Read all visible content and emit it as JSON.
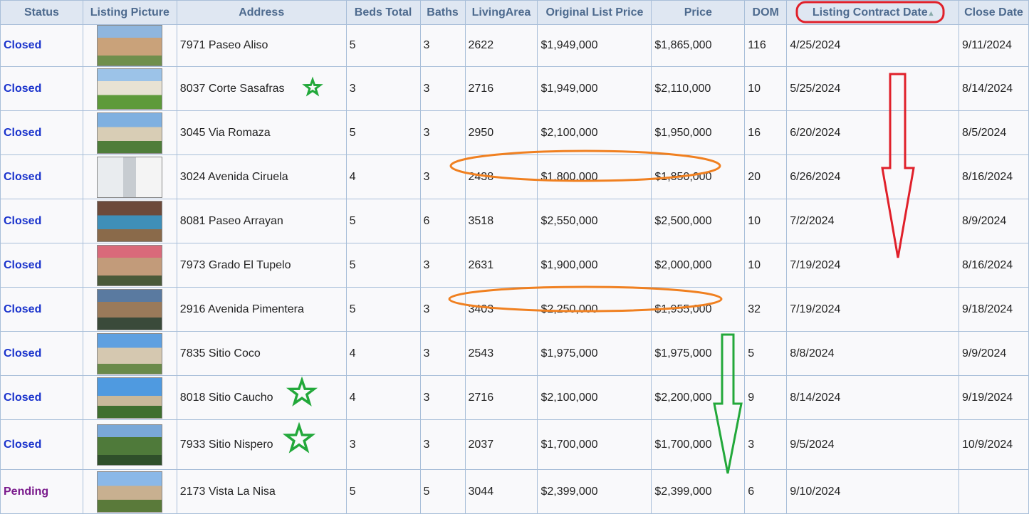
{
  "columns": [
    "Status",
    "Listing Picture",
    "Address",
    "Beds Total",
    "Baths",
    "LivingArea",
    "Original List Price",
    "Price",
    "DOM",
    "Listing Contract Date",
    "Close Date"
  ],
  "sort_icon": "sort-icon",
  "rows": [
    {
      "status": "Closed",
      "address": "7971 Paseo Aliso",
      "beds": "5",
      "baths": "3",
      "area": "2622",
      "orig": "$1,949,000",
      "price": "$1,865,000",
      "dom": "116",
      "contract": "4/25/2024",
      "close": "9/11/2024"
    },
    {
      "status": "Closed",
      "address": "8037 Corte Sasafras",
      "beds": "3",
      "baths": "3",
      "area": "2716",
      "orig": "$1,949,000",
      "price": "$2,110,000",
      "dom": "10",
      "contract": "5/25/2024",
      "close": "8/14/2024"
    },
    {
      "status": "Closed",
      "address": "3045 Via Romaza",
      "beds": "5",
      "baths": "3",
      "area": "2950",
      "orig": "$2,100,000",
      "price": "$1,950,000",
      "dom": "16",
      "contract": "6/20/2024",
      "close": "8/5/2024"
    },
    {
      "status": "Closed",
      "address": "3024 Avenida Ciruela",
      "beds": "4",
      "baths": "3",
      "area": "2438",
      "orig": "$1,800,000",
      "price": "$1,850,000",
      "dom": "20",
      "contract": "6/26/2024",
      "close": "8/16/2024"
    },
    {
      "status": "Closed",
      "address": "8081 Paseo Arrayan",
      "beds": "5",
      "baths": "6",
      "area": "3518",
      "orig": "$2,550,000",
      "price": "$2,500,000",
      "dom": "10",
      "contract": "7/2/2024",
      "close": "8/9/2024"
    },
    {
      "status": "Closed",
      "address": "7973 Grado El Tupelo",
      "beds": "5",
      "baths": "3",
      "area": "2631",
      "orig": "$1,900,000",
      "price": "$2,000,000",
      "dom": "10",
      "contract": "7/19/2024",
      "close": "8/16/2024"
    },
    {
      "status": "Closed",
      "address": "2916 Avenida Pimentera",
      "beds": "5",
      "baths": "3",
      "area": "3403",
      "orig": "$2,250,000",
      "price": "$1,955,000",
      "dom": "32",
      "contract": "7/19/2024",
      "close": "9/18/2024"
    },
    {
      "status": "Closed",
      "address": "7835 Sitio Coco",
      "beds": "4",
      "baths": "3",
      "area": "2543",
      "orig": "$1,975,000",
      "price": "$1,975,000",
      "dom": "5",
      "contract": "8/8/2024",
      "close": "9/9/2024"
    },
    {
      "status": "Closed",
      "address": "8018 Sitio Caucho",
      "beds": "4",
      "baths": "3",
      "area": "2716",
      "orig": "$2,100,000",
      "price": "$2,200,000",
      "dom": "9",
      "contract": "8/14/2024",
      "close": "9/19/2024"
    },
    {
      "status": "Closed",
      "address": "7933 Sitio Nispero",
      "beds": "3",
      "baths": "3",
      "area": "2037",
      "orig": "$1,700,000",
      "price": "$1,700,000",
      "dom": "3",
      "contract": "9/5/2024",
      "close": "10/9/2024"
    },
    {
      "status": "Pending",
      "address": "2173 Vista La Nisa",
      "beds": "5",
      "baths": "5",
      "area": "3044",
      "orig": "$2,399,000",
      "price": "$2,399,000",
      "dom": "6",
      "contract": "9/10/2024",
      "close": ""
    }
  ],
  "colors": {
    "closed": "#1a33cc",
    "pending": "#7a1a8c",
    "header_text": "#4d6a8e",
    "header_bg": "#dfe7f2",
    "border": "#a9bfd9",
    "red_annotation": "#e0202a",
    "orange_annotation": "#f08020",
    "green_annotation": "#22a83a"
  },
  "annotations": {
    "red_box_around": "Listing Contract Date",
    "red_arrow": "down",
    "green_arrow": "down",
    "orange_ovals_rows": [
      "3024 Avenida Ciruela",
      "2916 Avenida Pimentera"
    ],
    "star_rows": [
      "8037 Corte Sasafras",
      "8018 Sitio Caucho",
      "7933 Sitio Nispero"
    ]
  }
}
